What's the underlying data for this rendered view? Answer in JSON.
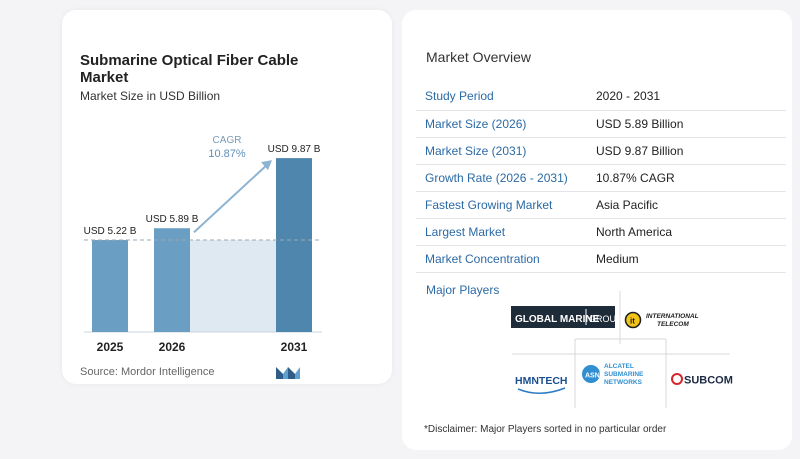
{
  "chart_data": {
    "type": "bar",
    "title": "Submarine Optical Fiber Cable Market",
    "subtitle": "Market Size in USD Billion",
    "categories": [
      "2025",
      "2026",
      "2031"
    ],
    "values": [
      5.22,
      5.89,
      9.87
    ],
    "value_labels": [
      "USD 5.22 B",
      "USD 5.89 B",
      "USD 9.87 B"
    ],
    "reference_line_value": 5.22,
    "cagr_label": "CAGR",
    "cagr_value": "10.87%",
    "ylim": [
      0,
      10.5
    ],
    "colors": {
      "bar": "#6a9ec2",
      "bar_dark": "#4f86ad",
      "shaded_area": "#dfe9f2",
      "arrow": "#8db3d3"
    }
  },
  "source": "Source:  Mordor Intelligence",
  "overview": {
    "title": "Market Overview",
    "rows": [
      {
        "key": "Study Period",
        "value": "2020 - 2031"
      },
      {
        "key": "Market Size (2026)",
        "value": "USD 5.89 Billion"
      },
      {
        "key": "Market Size (2031)",
        "value": "USD 9.87 Billion"
      },
      {
        "key": "Growth Rate (2026 - 2031)",
        "value": "10.87% CAGR"
      },
      {
        "key": "Fastest Growing Market",
        "value": "Asia Pacific"
      },
      {
        "key": "Largest Market",
        "value": "North America"
      },
      {
        "key": "Market Concentration",
        "value": "Medium"
      }
    ]
  },
  "players": {
    "title": "Major Players",
    "logos": [
      {
        "name": "global-marine-group",
        "text_a": "GLOBAL MARINE",
        "text_b": "GROUP"
      },
      {
        "name": "international-telecom",
        "text_a": "INTERNATIONAL",
        "text_b": "TELECOM"
      },
      {
        "name": "hmn-tech",
        "text_a": "HMNTECH"
      },
      {
        "name": "alcatel-submarine-networks",
        "text_a": "ALCATEL",
        "text_b": "SUBMARINE",
        "text_c": "NETWORKS"
      },
      {
        "name": "subcom",
        "text_a": "SUBCOM"
      }
    ]
  },
  "disclaimer": "*Disclaimer: Major Players sorted in no particular order"
}
